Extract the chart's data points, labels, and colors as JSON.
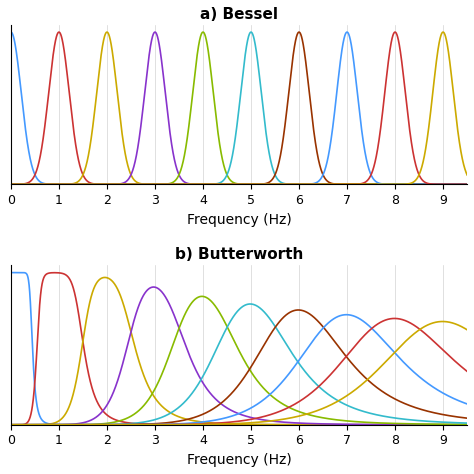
{
  "title_a": "a) Bessel",
  "title_b": "b) Butterworth",
  "xlabel": "Frequency (Hz)",
  "xlim": [
    0,
    9.5
  ],
  "xticks": [
    0,
    1,
    2,
    3,
    4,
    5,
    6,
    7,
    8,
    9
  ],
  "ylim": [
    0,
    1.05
  ],
  "filter_order": 8,
  "center_freqs": [
    0,
    1,
    2,
    3,
    4,
    5,
    6,
    7,
    8,
    9
  ],
  "bessel_bw": 0.5,
  "butter_bw": 0.42,
  "colors_cycle": [
    "#4499FF",
    "#CC3333",
    "#CCAA00",
    "#8833CC",
    "#88BB00",
    "#33BBCC",
    "#993300",
    "#4499FF",
    "#CC3333",
    "#CCAA00"
  ],
  "figsize": [
    4.74,
    4.74
  ],
  "dpi": 100
}
